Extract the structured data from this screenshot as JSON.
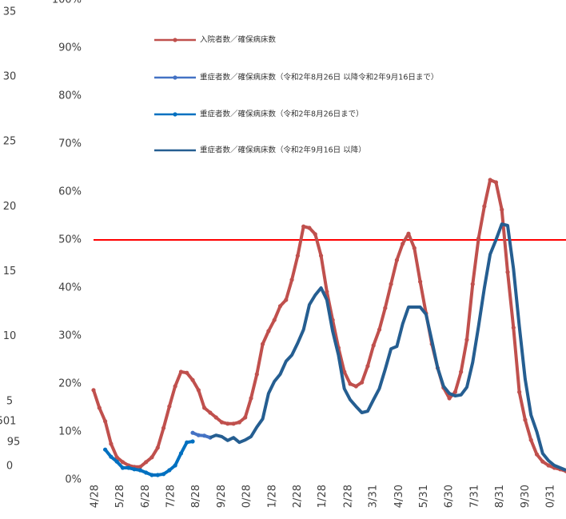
{
  "chart_data": {
    "type": "line",
    "categories": [
      "4/28",
      "5/28",
      "6/28",
      "7/28",
      "8/28",
      "9/28",
      "0/28",
      "1/28",
      "2/28",
      "1/28",
      "2/28",
      "3/31",
      "4/30",
      "5/31",
      "6/30",
      "7/31",
      "8/31",
      "9/30",
      "0/31"
    ],
    "xlim": [
      0,
      81
    ],
    "xticks": [
      {
        "value": 0.3,
        "label": "4/28"
      },
      {
        "value": 4.6,
        "label": "5/28"
      },
      {
        "value": 9.0,
        "label": "6/28"
      },
      {
        "value": 13.3,
        "label": "7/28"
      },
      {
        "value": 17.6,
        "label": "8/28"
      },
      {
        "value": 22.0,
        "label": "9/28"
      },
      {
        "value": 26.3,
        "label": "0/28"
      },
      {
        "value": 30.7,
        "label": "1/28"
      },
      {
        "value": 35.0,
        "label": "2/28"
      },
      {
        "value": 39.3,
        "label": "1/28"
      },
      {
        "value": 43.7,
        "label": "2/28"
      },
      {
        "value": 48.0,
        "label": "3/31"
      },
      {
        "value": 52.4,
        "label": "4/30"
      },
      {
        "value": 56.7,
        "label": "5/31"
      },
      {
        "value": 61.0,
        "label": "6/30"
      },
      {
        "value": 65.4,
        "label": "7/31"
      },
      {
        "value": 69.7,
        "label": "8/31"
      },
      {
        "value": 74.1,
        "label": "9/30"
      },
      {
        "value": 78.4,
        "label": "0/31"
      }
    ],
    "ylim": [
      0,
      100
    ],
    "yticks": [
      {
        "value": 0,
        "label": "0%"
      },
      {
        "value": 10,
        "label": "10%"
      },
      {
        "value": 20,
        "label": "20%"
      },
      {
        "value": 30,
        "label": "30%"
      },
      {
        "value": 40,
        "label": "40%"
      },
      {
        "value": 50,
        "label": "50%"
      },
      {
        "value": 60,
        "label": "60%"
      },
      {
        "value": 70,
        "label": "70%"
      },
      {
        "value": 80,
        "label": "80%"
      },
      {
        "value": 90,
        "label": "90%"
      },
      {
        "value": 100,
        "label": "100%"
      }
    ],
    "y2lim": [
      -1.047,
      35.92
    ],
    "y2ticks": [
      0,
      5,
      10,
      15,
      20,
      25,
      30,
      35
    ],
    "annotations": [
      "501",
      "95"
    ],
    "reference_line": {
      "value": 50,
      "color": "#ff0000"
    },
    "series": [
      {
        "name": "入院者数／確保病床数",
        "color": "#c0504d",
        "markers": true,
        "x": [
          0,
          1,
          2,
          3,
          4,
          5,
          6,
          7,
          8,
          9,
          10,
          11,
          12,
          13,
          14,
          15,
          16,
          17,
          18,
          19,
          20,
          21,
          22,
          23,
          24,
          25,
          26,
          27,
          28,
          29,
          30,
          31,
          32,
          33,
          34,
          35,
          36,
          37,
          38,
          39,
          40,
          41,
          42,
          43,
          44,
          45,
          46,
          47,
          48,
          49,
          50,
          51,
          52,
          53,
          54,
          55,
          56,
          57,
          58,
          59,
          60,
          61,
          62,
          63,
          64,
          65,
          66,
          67,
          68,
          69,
          70,
          71,
          72,
          73,
          74,
          75,
          76,
          77,
          78,
          79,
          80,
          81
        ],
        "values": [
          18.7,
          15,
          12.2,
          7.5,
          4.7,
          3.7,
          3,
          2.7,
          2.7,
          3.7,
          4.7,
          6.7,
          10.8,
          15.3,
          19.5,
          22.5,
          22.3,
          20.8,
          18.7,
          15,
          14,
          13,
          12,
          11.7,
          11.7,
          12,
          13,
          17,
          22,
          28.3,
          31,
          33.3,
          36.2,
          37.5,
          41.7,
          46.7,
          52.8,
          52.5,
          51.2,
          46.7,
          39.2,
          33.3,
          27.5,
          22.5,
          20,
          19.5,
          20.3,
          23.7,
          28,
          31.3,
          35.8,
          40.8,
          45.8,
          49.2,
          51.3,
          48.3,
          41.3,
          34.7,
          28.3,
          23.3,
          19.2,
          17,
          18.3,
          22.5,
          29.2,
          40.8,
          50.3,
          57,
          62.5,
          62,
          56.3,
          43.3,
          31.7,
          18.3,
          12.5,
          8.3,
          5.3,
          3.8,
          3,
          2.5,
          2.2,
          1.8
        ]
      },
      {
        "name": "重症者数／確保病床数（令和2年8月26日 以降令和2年9月16日まで）",
        "color": "#4472c4",
        "markers": true,
        "x": [
          17,
          18,
          19,
          20
        ],
        "values": [
          9.8,
          9.3,
          9.2,
          8.8
        ]
      },
      {
        "name": "重症者数／確保病床数（令和2年8月26日まで）",
        "color": "#0070c0",
        "markers": true,
        "x": [
          2,
          3,
          4,
          5,
          6,
          7,
          8,
          9,
          10,
          11,
          12,
          13,
          14,
          15,
          16,
          17
        ],
        "values": [
          6.3,
          4.8,
          3.8,
          2.5,
          2.5,
          2.2,
          2.0,
          1.5,
          1.0,
          1.0,
          1.2,
          2.0,
          3.0,
          5.5,
          7.8,
          8.0
        ]
      },
      {
        "name": "重症者数／確保病床数（令和2年9月16日 以降）",
        "color": "#255e91",
        "markers": false,
        "x": [
          20,
          21,
          22,
          23,
          24,
          25,
          26,
          27,
          28,
          29,
          30,
          31,
          32,
          33,
          34,
          35,
          36,
          37,
          38,
          39,
          40,
          41,
          42,
          43,
          44,
          45,
          46,
          47,
          48,
          49,
          50,
          51,
          52,
          53,
          54,
          55,
          56,
          57,
          58,
          59,
          60,
          61,
          62,
          63,
          64,
          65,
          66,
          67,
          68,
          69,
          70,
          71,
          72,
          73,
          74,
          75,
          76,
          77,
          78,
          79,
          80,
          81
        ],
        "values": [
          8.8,
          9.3,
          9.0,
          8.2,
          8.8,
          7.8,
          8.3,
          9.0,
          11,
          12.7,
          18,
          20.5,
          22,
          24.7,
          26,
          28.5,
          31.3,
          36.5,
          38.5,
          40,
          37.5,
          31,
          26,
          19,
          16.7,
          15.3,
          14,
          14.3,
          16.7,
          19,
          23,
          27.3,
          27.8,
          32.5,
          36,
          36,
          36,
          34.5,
          29,
          23.3,
          19.5,
          18,
          17.5,
          17.7,
          19.3,
          24.5,
          32,
          40,
          47,
          50,
          53.3,
          53,
          44,
          32,
          21,
          13.5,
          10,
          5.5,
          4,
          3,
          2.5,
          2.0
        ]
      }
    ]
  }
}
